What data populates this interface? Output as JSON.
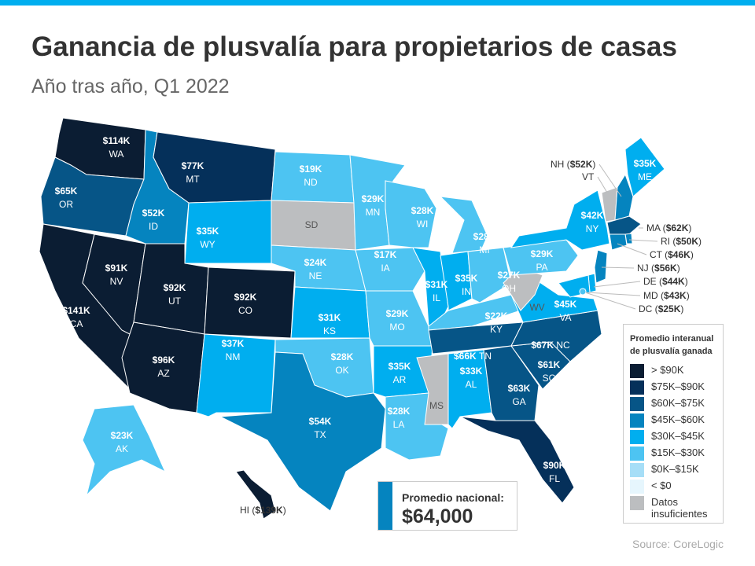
{
  "title": "Ganancia de plusvalía para propietarios de casas",
  "subtitle": "Año tras año, Q1 2022",
  "source": "Source: CoreLogic",
  "colors": {
    "accent": "#00aeef",
    "gt90": "#0b1d33",
    "b75_90": "#05305a",
    "b60_75": "#065587",
    "b45_60": "#0584bf",
    "b30_45": "#00aeef",
    "b15_30": "#4dc4f2",
    "b0_15": "#a6def7",
    "lt0": "#e6f6fd",
    "na": "#bcbec0"
  },
  "legend": {
    "title": "Promedio interanual de plusvalía ganada",
    "items": [
      {
        "label": "> $90K",
        "bin": "gt90"
      },
      {
        "label": "$75K–$90K",
        "bin": "b75_90"
      },
      {
        "label": "$60K–$75K",
        "bin": "b60_75"
      },
      {
        "label": "$45K–$60K",
        "bin": "b45_60"
      },
      {
        "label": "$30K–$45K",
        "bin": "b30_45"
      },
      {
        "label": "$15K–$30K",
        "bin": "b15_30"
      },
      {
        "label": "$0K–$15K",
        "bin": "b0_15"
      },
      {
        "label": "< $0",
        "bin": "lt0"
      },
      {
        "label": "Datos insuficientes",
        "bin": "na"
      }
    ]
  },
  "national": {
    "label": "Promedio nacional:",
    "value": "$64,000"
  },
  "states": [
    {
      "abbr": "WA",
      "value": "$114K",
      "bin": "gt90"
    },
    {
      "abbr": "OR",
      "value": "$65K",
      "bin": "b60_75"
    },
    {
      "abbr": "CA",
      "value": "$141K",
      "bin": "gt90"
    },
    {
      "abbr": "NV",
      "value": "$91K",
      "bin": "gt90"
    },
    {
      "abbr": "ID",
      "value": "$52K",
      "bin": "b45_60"
    },
    {
      "abbr": "MT",
      "value": "$77K",
      "bin": "b75_90"
    },
    {
      "abbr": "WY",
      "value": "$35K",
      "bin": "b30_45"
    },
    {
      "abbr": "UT",
      "value": "$92K",
      "bin": "gt90"
    },
    {
      "abbr": "CO",
      "value": "$92K",
      "bin": "gt90"
    },
    {
      "abbr": "AZ",
      "value": "$96K",
      "bin": "gt90"
    },
    {
      "abbr": "NM",
      "value": "$37K",
      "bin": "b30_45"
    },
    {
      "abbr": "ND",
      "value": "$19K",
      "bin": "b15_30"
    },
    {
      "abbr": "SD",
      "value": "",
      "bin": "na"
    },
    {
      "abbr": "NE",
      "value": "$24K",
      "bin": "b15_30"
    },
    {
      "abbr": "KS",
      "value": "$31K",
      "bin": "b30_45"
    },
    {
      "abbr": "OK",
      "value": "$28K",
      "bin": "b15_30"
    },
    {
      "abbr": "TX",
      "value": "$54K",
      "bin": "b45_60"
    },
    {
      "abbr": "MN",
      "value": "$29K",
      "bin": "b15_30"
    },
    {
      "abbr": "IA",
      "value": "$17K",
      "bin": "b15_30"
    },
    {
      "abbr": "MO",
      "value": "$29K",
      "bin": "b15_30"
    },
    {
      "abbr": "AR",
      "value": "$35K",
      "bin": "b30_45"
    },
    {
      "abbr": "LA",
      "value": "$28K",
      "bin": "b15_30"
    },
    {
      "abbr": "WI",
      "value": "$28K",
      "bin": "b15_30"
    },
    {
      "abbr": "IL",
      "value": "$31K",
      "bin": "b30_45"
    },
    {
      "abbr": "IN",
      "value": "$35K",
      "bin": "b30_45"
    },
    {
      "abbr": "MI",
      "value": "$28K",
      "bin": "b15_30"
    },
    {
      "abbr": "OH",
      "value": "$27K",
      "bin": "b15_30"
    },
    {
      "abbr": "KY",
      "value": "$22K",
      "bin": "b15_30"
    },
    {
      "abbr": "TN",
      "value": "$66K",
      "bin": "b60_75"
    },
    {
      "abbr": "MS",
      "value": "",
      "bin": "na"
    },
    {
      "abbr": "AL",
      "value": "$33K",
      "bin": "b30_45"
    },
    {
      "abbr": "GA",
      "value": "$63K",
      "bin": "b60_75"
    },
    {
      "abbr": "SC",
      "value": "$61K",
      "bin": "b60_75"
    },
    {
      "abbr": "NC",
      "value": "$67K",
      "bin": "b60_75"
    },
    {
      "abbr": "FL",
      "value": "$90K",
      "bin": "b75_90"
    },
    {
      "abbr": "VA",
      "value": "$45K",
      "bin": "b30_45"
    },
    {
      "abbr": "WV",
      "value": "",
      "bin": "na"
    },
    {
      "abbr": "PA",
      "value": "$29K",
      "bin": "b15_30"
    },
    {
      "abbr": "NY",
      "value": "$42K",
      "bin": "b30_45"
    },
    {
      "abbr": "ME",
      "value": "$35K",
      "bin": "b30_45"
    },
    {
      "abbr": "VT",
      "value": "",
      "bin": "na"
    },
    {
      "abbr": "NH",
      "value": "$52K",
      "bin": "b45_60"
    },
    {
      "abbr": "MA",
      "value": "$62K",
      "bin": "b60_75"
    },
    {
      "abbr": "RI",
      "value": "$50K",
      "bin": "b45_60"
    },
    {
      "abbr": "CT",
      "value": "$46K",
      "bin": "b45_60"
    },
    {
      "abbr": "NJ",
      "value": "$56K",
      "bin": "b45_60"
    },
    {
      "abbr": "DE",
      "value": "$44K",
      "bin": "b30_45"
    },
    {
      "abbr": "MD",
      "value": "$43K",
      "bin": "b30_45"
    },
    {
      "abbr": "DC",
      "value": "$25K",
      "bin": "b15_30"
    },
    {
      "abbr": "AK",
      "value": "$23K",
      "bin": "b15_30"
    },
    {
      "abbr": "HI",
      "value": "$139K",
      "bin": "gt90"
    }
  ]
}
